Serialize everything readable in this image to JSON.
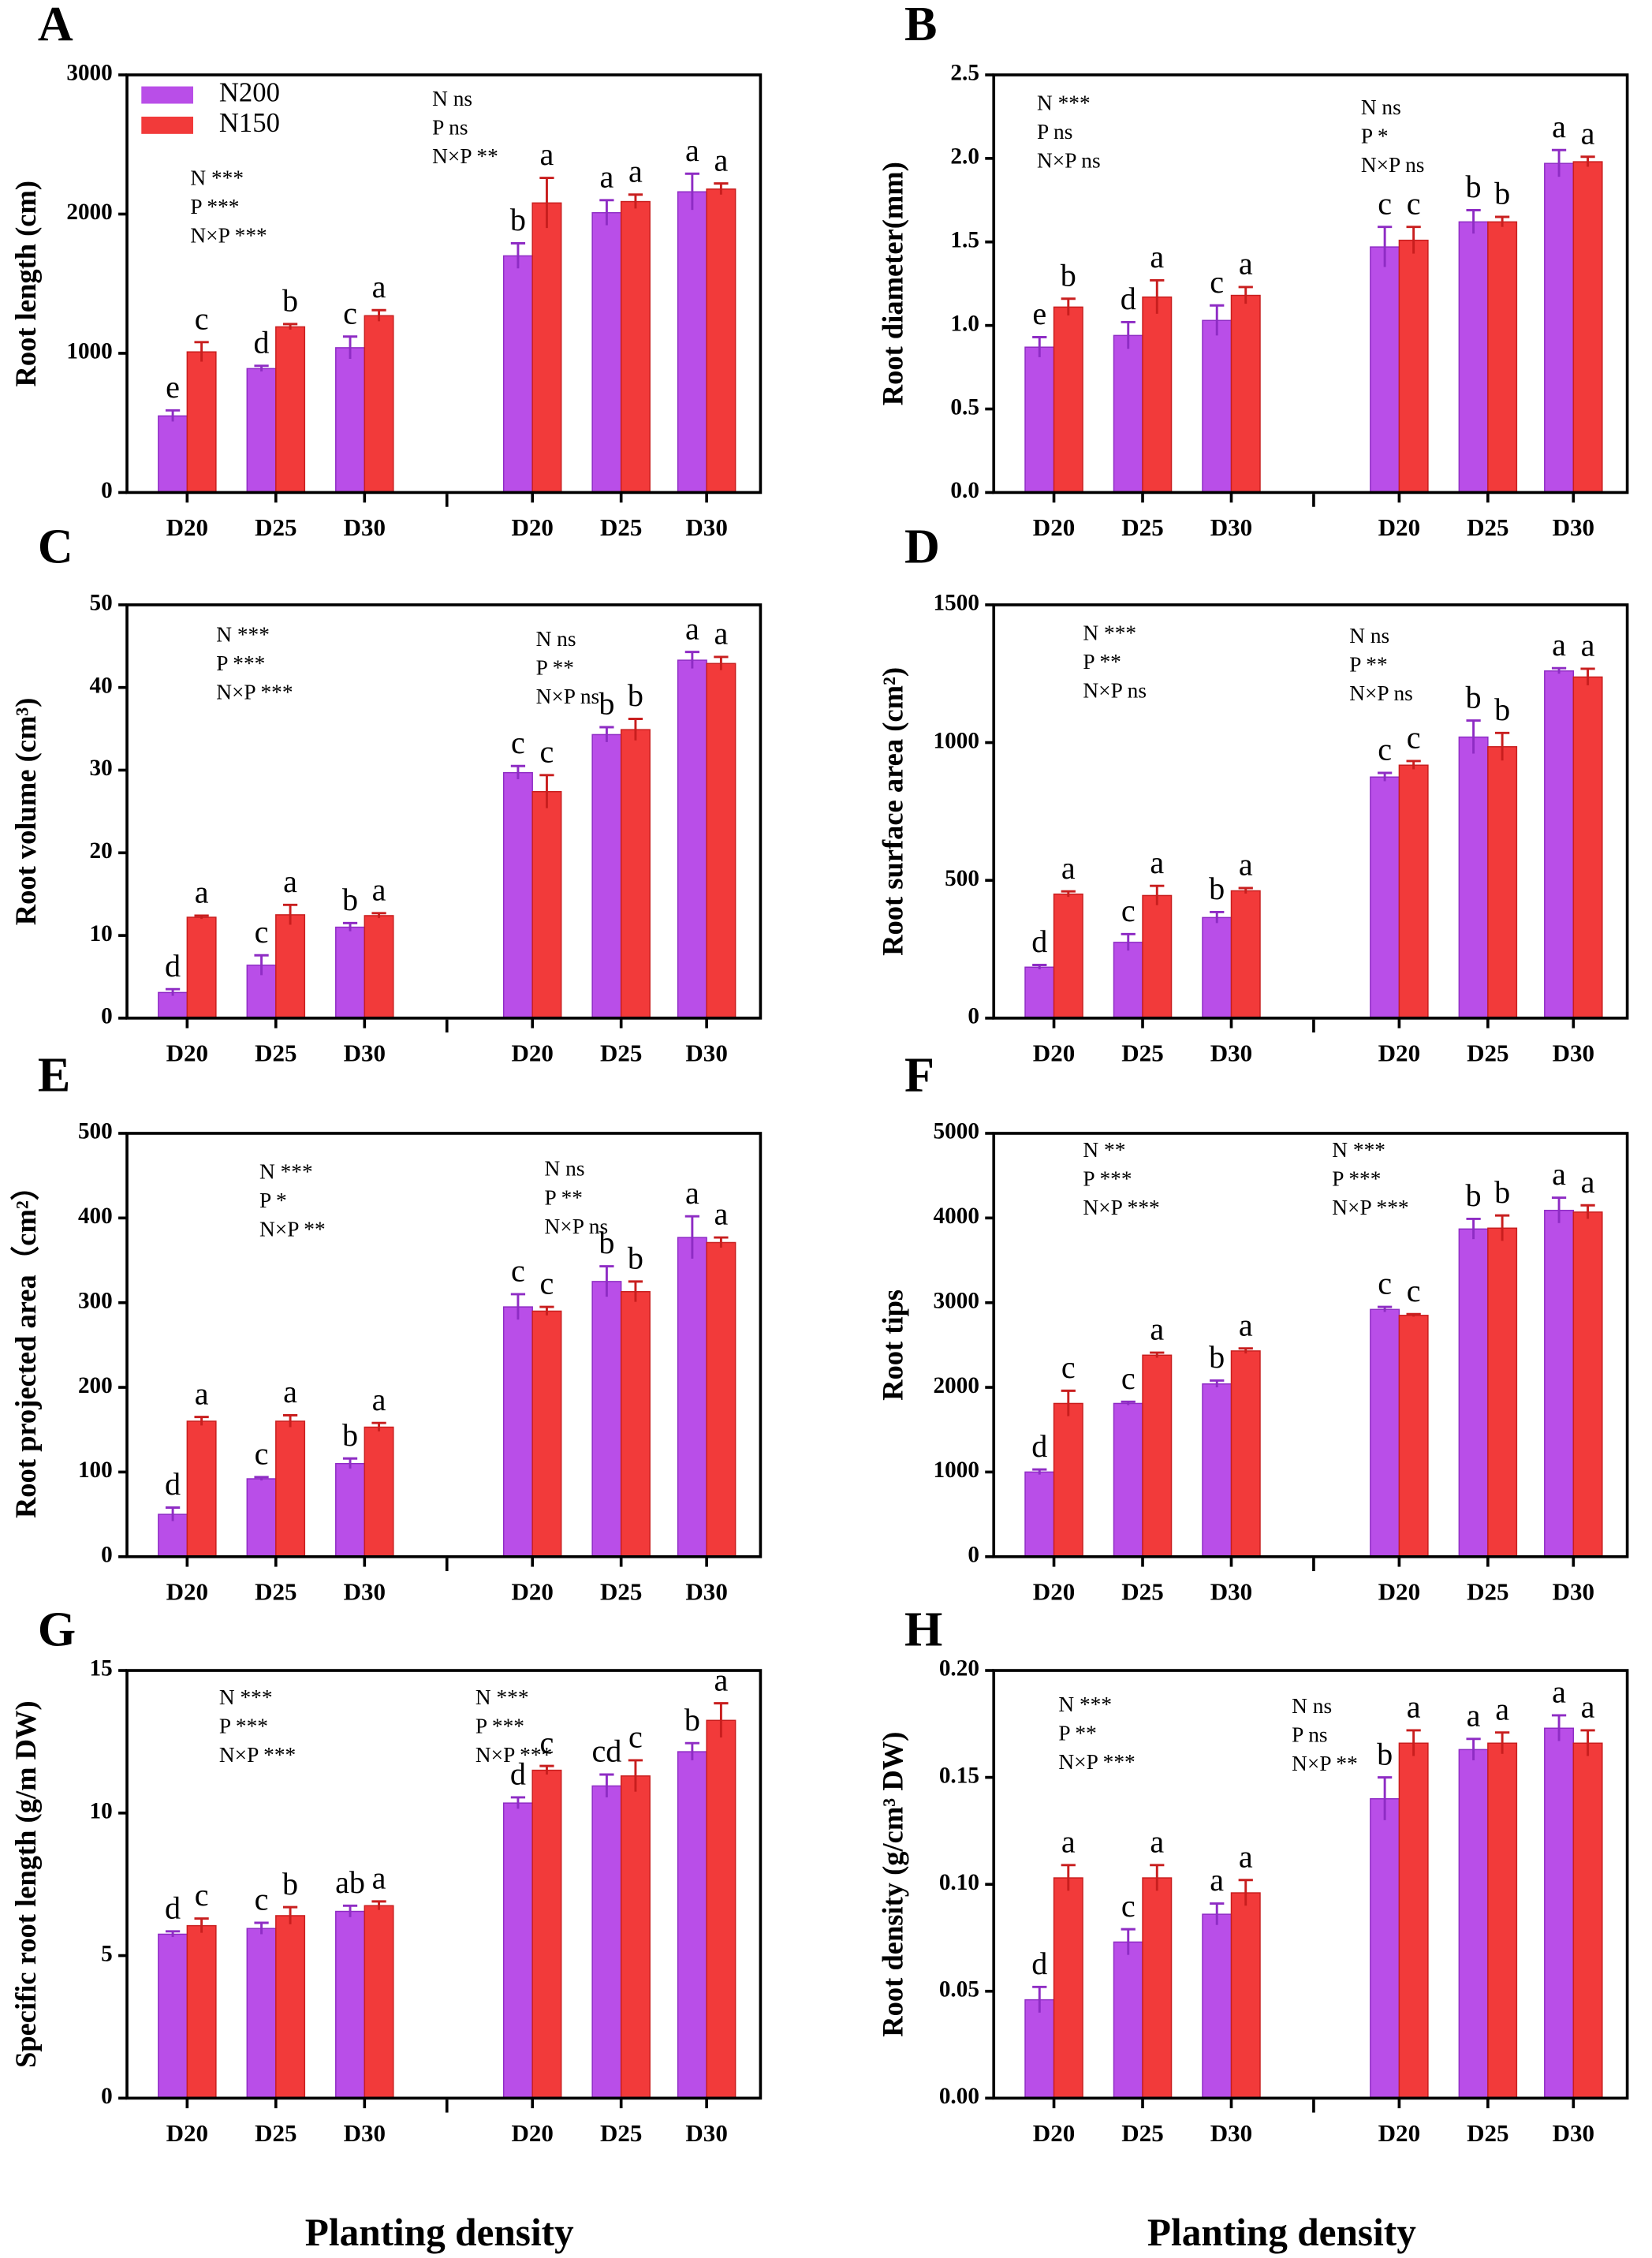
{
  "chart_data": [
    {
      "type": "bar",
      "panel": "A",
      "ylabel": "Root length (cm)",
      "categories": [
        "D20",
        "D25",
        "D30",
        "D20",
        "D25",
        "D30"
      ],
      "ylim": [
        0,
        3000
      ],
      "yticks": [
        0,
        1000,
        2000,
        3000
      ],
      "legend": true,
      "series": [
        {
          "name": "N200",
          "color": "#b94ee8",
          "values": [
            550,
            890,
            1040,
            1700,
            2010,
            2160
          ],
          "errors": [
            40,
            20,
            80,
            90,
            90,
            130
          ],
          "labels": [
            "e",
            "d",
            "c",
            "b",
            "a",
            "a"
          ]
        },
        {
          "name": "N150",
          "color": "#f23a3a",
          "values": [
            1010,
            1190,
            1270,
            2080,
            2090,
            2180
          ],
          "errors": [
            70,
            20,
            40,
            180,
            50,
            40
          ],
          "labels": [
            "c",
            "b",
            "a",
            "a",
            "a",
            "a"
          ]
        }
      ],
      "annotations": [
        [
          "N ***",
          "P ***",
          "N×P ***"
        ],
        [
          "N ns",
          "P ns",
          "N×P **"
        ]
      ]
    },
    {
      "type": "bar",
      "panel": "B",
      "ylabel": "Root diameter(mm)",
      "categories": [
        "D20",
        "D25",
        "D30",
        "D20",
        "D25",
        "D30"
      ],
      "ylim": [
        0,
        2.5
      ],
      "yticks": [
        {
          "value": 0,
          "label": "0.0"
        },
        0.5,
        {
          "value": 1,
          "label": "1.0"
        },
        1.5,
        {
          "value": 2,
          "label": "2.0"
        },
        2.5
      ],
      "series": [
        {
          "name": "N200",
          "color": "#b94ee8",
          "values": [
            0.87,
            0.94,
            1.03,
            1.47,
            1.62,
            1.97
          ],
          "errors": [
            0.06,
            0.08,
            0.09,
            0.12,
            0.07,
            0.08
          ],
          "labels": [
            "e",
            "d",
            "c",
            "c",
            "b",
            "a"
          ]
        },
        {
          "name": "N150",
          "color": "#f23a3a",
          "values": [
            1.11,
            1.17,
            1.18,
            1.51,
            1.62,
            1.98
          ],
          "errors": [
            0.05,
            0.1,
            0.05,
            0.08,
            0.03,
            0.03
          ],
          "labels": [
            "b",
            "a",
            "a",
            "c",
            "b",
            "a"
          ]
        }
      ],
      "annotations": [
        [
          "N ***",
          "P ns",
          "N×P ns"
        ],
        [
          "N ns",
          "P *",
          "N×P ns"
        ]
      ]
    },
    {
      "type": "bar",
      "panel": "C",
      "ylabel": "Root volume (cm³)",
      "categories": [
        "D20",
        "D25",
        "D30",
        "D20",
        "D25",
        "D30"
      ],
      "ylim": [
        0,
        50
      ],
      "yticks": [
        0,
        10,
        20,
        30,
        40,
        50
      ],
      "series": [
        {
          "name": "N200",
          "color": "#b94ee8",
          "values": [
            3.1,
            6.4,
            11.0,
            29.7,
            34.3,
            43.3
          ],
          "errors": [
            0.4,
            1.2,
            0.5,
            0.8,
            0.9,
            1.0
          ],
          "labels": [
            "d",
            "c",
            "b",
            "c",
            "b",
            "a"
          ]
        },
        {
          "name": "N150",
          "color": "#f23a3a",
          "values": [
            12.2,
            12.5,
            12.4,
            27.4,
            34.9,
            42.9
          ],
          "errors": [
            0.2,
            1.2,
            0.3,
            2.0,
            1.3,
            0.8
          ],
          "labels": [
            "a",
            "a",
            "a",
            "c",
            "b",
            "a"
          ]
        }
      ],
      "annotations": [
        [
          "N ***",
          "P ***",
          "N×P ***"
        ],
        [
          "N ns",
          "P **",
          "N×P ns"
        ]
      ]
    },
    {
      "type": "bar",
      "panel": "D",
      "ylabel": "Root surface area (cm²)",
      "categories": [
        "D20",
        "D25",
        "D30",
        "D20",
        "D25",
        "D30"
      ],
      "ylim": [
        0,
        1500
      ],
      "yticks": [
        0,
        500,
        1000,
        1500
      ],
      "series": [
        {
          "name": "N200",
          "color": "#b94ee8",
          "values": [
            185,
            275,
            365,
            875,
            1020,
            1260
          ],
          "errors": [
            8,
            30,
            20,
            15,
            60,
            10
          ],
          "labels": [
            "d",
            "c",
            "b",
            "c",
            "b",
            "a"
          ]
        },
        {
          "name": "N150",
          "color": "#f23a3a",
          "values": [
            450,
            445,
            462,
            918,
            985,
            1238
          ],
          "errors": [
            10,
            35,
            10,
            15,
            50,
            30
          ],
          "labels": [
            "a",
            "a",
            "a",
            "c",
            "b",
            "a"
          ]
        }
      ],
      "annotations": [
        [
          "N ***",
          "P **",
          "N×P ns"
        ],
        [
          "N ns",
          "P **",
          "N×P ns"
        ]
      ]
    },
    {
      "type": "bar",
      "panel": "E",
      "ylabel": "Root projected area（cm²）",
      "categories": [
        "D20",
        "D25",
        "D30",
        "D20",
        "D25",
        "D30"
      ],
      "ylim": [
        0,
        500
      ],
      "yticks": [
        0,
        100,
        200,
        300,
        400,
        500
      ],
      "series": [
        {
          "name": "N200",
          "color": "#b94ee8",
          "values": [
            50,
            92,
            110,
            295,
            325,
            377
          ],
          "errors": [
            8,
            2,
            6,
            15,
            18,
            25
          ],
          "labels": [
            "d",
            "c",
            "b",
            "c",
            "b",
            "a"
          ]
        },
        {
          "name": "N150",
          "color": "#f23a3a",
          "values": [
            160,
            160,
            153,
            290,
            313,
            371
          ],
          "errors": [
            5,
            7,
            5,
            5,
            12,
            6
          ],
          "labels": [
            "a",
            "a",
            "a",
            "c",
            "b",
            "a"
          ]
        }
      ],
      "annotations": [
        [
          "N ***",
          "P *",
          "N×P **"
        ],
        [
          "N ns",
          "P **",
          "N×P ns"
        ]
      ]
    },
    {
      "type": "bar",
      "panel": "F",
      "ylabel": "Root tips",
      "categories": [
        "D20",
        "D25",
        "D30",
        "D20",
        "D25",
        "D30"
      ],
      "ylim": [
        0,
        5000
      ],
      "yticks": [
        0,
        1000,
        2000,
        3000,
        4000,
        5000
      ],
      "series": [
        {
          "name": "N200",
          "color": "#b94ee8",
          "values": [
            1000,
            1810,
            2040,
            2920,
            3870,
            4090
          ],
          "errors": [
            30,
            20,
            40,
            30,
            120,
            150
          ],
          "labels": [
            "d",
            "c",
            "b",
            "c",
            "b",
            "a"
          ]
        },
        {
          "name": "N150",
          "color": "#f23a3a",
          "values": [
            1810,
            2380,
            2430,
            2850,
            3880,
            4070
          ],
          "errors": [
            150,
            30,
            30,
            15,
            150,
            80
          ],
          "labels": [
            "c",
            "a",
            "a",
            "c",
            "b",
            "a"
          ]
        }
      ],
      "annotations": [
        [
          "N **",
          "P ***",
          "N×P ***"
        ],
        [
          "N ***",
          "P ***",
          "N×P ***"
        ]
      ]
    },
    {
      "type": "bar",
      "panel": "G",
      "ylabel": "Specific root length (g/m DW)",
      "categories": [
        "D20",
        "D25",
        "D30",
        "D20",
        "D25",
        "D30"
      ],
      "ylim": [
        0,
        15
      ],
      "yticks": [
        0,
        5,
        10,
        15
      ],
      "series": [
        {
          "name": "N200",
          "color": "#b94ee8",
          "values": [
            5.75,
            5.95,
            6.55,
            10.35,
            10.95,
            12.15
          ],
          "errors": [
            0.1,
            0.2,
            0.2,
            0.2,
            0.4,
            0.3
          ],
          "labels": [
            "d",
            "c",
            "ab",
            "d",
            "cd",
            "b"
          ]
        },
        {
          "name": "N150",
          "color": "#f23a3a",
          "values": [
            6.05,
            6.4,
            6.75,
            11.5,
            11.3,
            13.25
          ],
          "errors": [
            0.25,
            0.3,
            0.15,
            0.15,
            0.55,
            0.6
          ],
          "labels": [
            "c",
            "b",
            "a",
            "c",
            "c",
            "a"
          ]
        }
      ],
      "annotations": [
        [
          "N ***",
          "P ***",
          "N×P ***"
        ],
        [
          "N ***",
          "P ***",
          "N×P ***"
        ]
      ]
    },
    {
      "type": "bar",
      "panel": "H",
      "ylabel": "Root density (g/cm³ DW)",
      "categories": [
        "D20",
        "D25",
        "D30",
        "D20",
        "D25",
        "D30"
      ],
      "ylim": [
        0,
        0.2
      ],
      "yticks": [
        {
          "value": 0,
          "label": "0.00"
        },
        0.05,
        {
          "value": 0.1,
          "label": "0.10"
        },
        0.15,
        {
          "value": 0.2,
          "label": "0.20"
        }
      ],
      "series": [
        {
          "name": "N200",
          "color": "#b94ee8",
          "values": [
            0.046,
            0.073,
            0.086,
            0.14,
            0.163,
            0.173
          ],
          "errors": [
            0.006,
            0.006,
            0.005,
            0.01,
            0.005,
            0.006
          ],
          "labels": [
            "d",
            "c",
            "a",
            "b",
            "a",
            "a"
          ]
        },
        {
          "name": "N150",
          "color": "#f23a3a",
          "values": [
            0.103,
            0.103,
            0.096,
            0.166,
            0.166,
            0.166
          ],
          "errors": [
            0.006,
            0.006,
            0.006,
            0.006,
            0.005,
            0.006
          ],
          "labels": [
            "a",
            "a",
            "a",
            "a",
            "a",
            "a"
          ]
        }
      ],
      "annotations": [
        [
          "N ***",
          "P **",
          "N×P ***"
        ],
        [
          "N ns",
          "P ns",
          "N×P **"
        ]
      ]
    }
  ],
  "xlabels": [
    "Planting density",
    "Planting density"
  ]
}
